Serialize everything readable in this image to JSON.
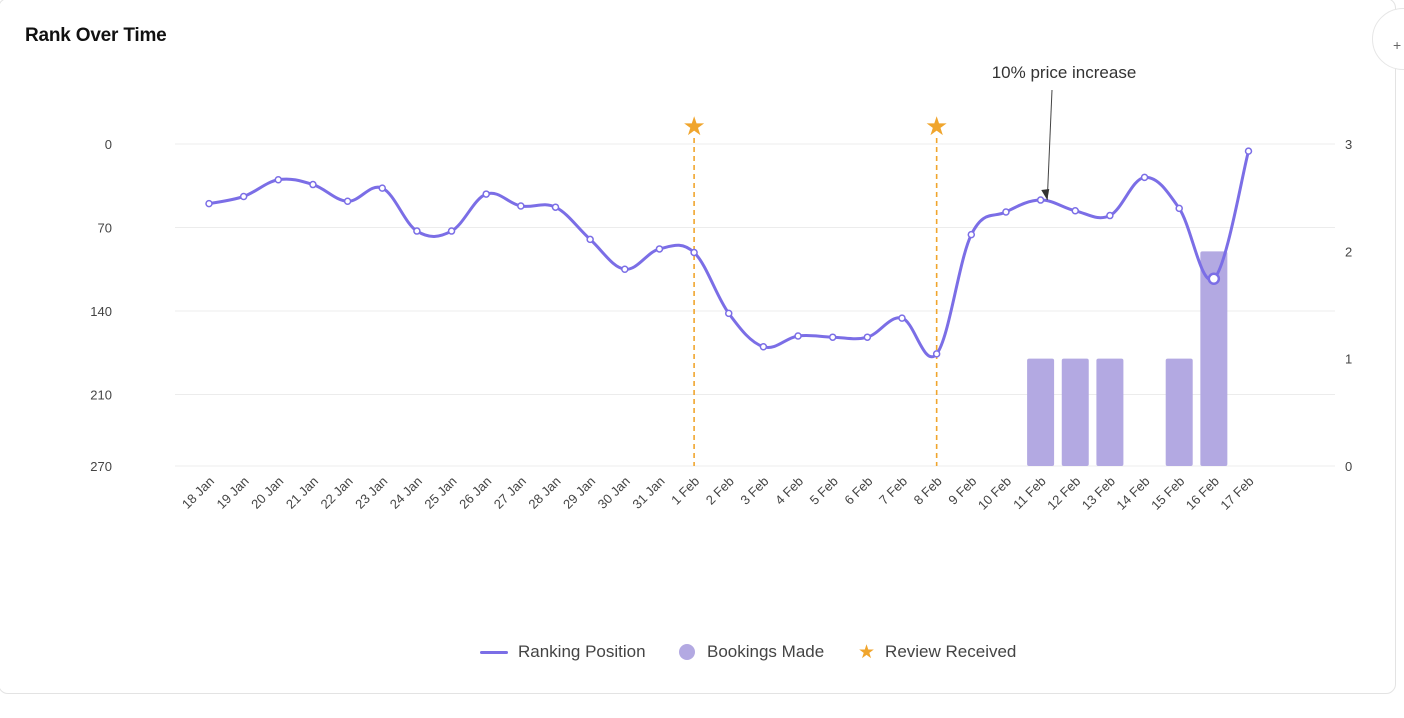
{
  "title": "Rank Over Time",
  "corner_button": {
    "icon": "plus-icon",
    "label": "+"
  },
  "legend": {
    "ranking": "Ranking Position",
    "bookings": "Bookings Made",
    "review": "Review Received"
  },
  "annotation": {
    "text": "10% price increase",
    "target_category": "12 Feb"
  },
  "colors": {
    "line": "#7b6ee6",
    "bar": "#b3a9e2",
    "review": "#f0a52d",
    "grid": "#ececec",
    "axis_text": "#444444"
  },
  "chart_data": {
    "type": "line",
    "categories": [
      "18 Jan",
      "19 Jan",
      "20 Jan",
      "21 Jan",
      "22 Jan",
      "23 Jan",
      "24 Jan",
      "25 Jan",
      "26 Jan",
      "27 Jan",
      "28 Jan",
      "29 Jan",
      "30 Jan",
      "31 Jan",
      "1 Feb",
      "2 Feb",
      "3 Feb",
      "4 Feb",
      "5 Feb",
      "6 Feb",
      "7 Feb",
      "8 Feb",
      "9 Feb",
      "10 Feb",
      "11 Feb",
      "12 Feb",
      "13 Feb",
      "14 Feb",
      "15 Feb",
      "16 Feb",
      "17 Feb"
    ],
    "series": [
      {
        "name": "Ranking Position",
        "axis": "left",
        "type": "line",
        "values": [
          50,
          44,
          30,
          34,
          48,
          37,
          73,
          73,
          42,
          52,
          53,
          80,
          105,
          88,
          91,
          142,
          170,
          161,
          162,
          162,
          146,
          176,
          76,
          57,
          47,
          56,
          60,
          28,
          54,
          113,
          6
        ]
      },
      {
        "name": "Bookings Made",
        "axis": "right",
        "type": "bar",
        "values": [
          0,
          0,
          0,
          0,
          0,
          0,
          0,
          0,
          0,
          0,
          0,
          0,
          0,
          0,
          0,
          0,
          0,
          0,
          0,
          0,
          0,
          0,
          0,
          0,
          1,
          1,
          1,
          0,
          1,
          2,
          0
        ]
      },
      {
        "name": "Review Received",
        "type": "marker",
        "categories": [
          "1 Feb",
          "8 Feb"
        ]
      }
    ],
    "y_left": {
      "ticks": [
        0,
        70,
        140,
        210,
        270
      ],
      "inverted": true,
      "range": [
        0,
        270
      ]
    },
    "y_right": {
      "ticks": [
        0,
        1,
        2,
        3
      ],
      "range": [
        0,
        3
      ]
    },
    "grid": true,
    "legend_position": "bottom"
  }
}
